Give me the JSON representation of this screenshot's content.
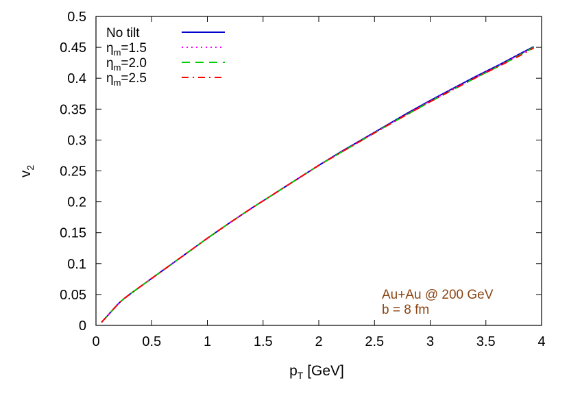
{
  "chart_data": {
    "type": "line",
    "xlabel": {
      "main": "p",
      "sub": "T",
      "rest": " [GeV]"
    },
    "ylabel": {
      "main": "v",
      "sub": "2"
    },
    "xlim": [
      0,
      4
    ],
    "ylim": [
      0,
      0.5
    ],
    "x_ticks": [
      "0",
      "0.5",
      "1",
      "1.5",
      "2",
      "2.5",
      "3",
      "3.5",
      "4"
    ],
    "y_ticks": [
      "0",
      "0.05",
      "0.1",
      "0.15",
      "0.2",
      "0.25",
      "0.3",
      "0.35",
      "0.4",
      "0.45",
      "0.5"
    ],
    "grid": false,
    "legend_position": "top-left",
    "annotation": {
      "lines": [
        "Au+Au @ 200 GeV",
        "b = 8 fm"
      ],
      "color": "#8b4513"
    },
    "series": [
      {
        "name": "No tilt",
        "legend_label": {
          "main": "No tilt",
          "sub": "",
          "rest": ""
        },
        "color": "#0000cc",
        "dash": "solid",
        "x": [
          0.05,
          0.1,
          0.15,
          0.2,
          0.25,
          0.3,
          0.4,
          0.5,
          0.6,
          0.7,
          0.8,
          0.9,
          1.0,
          1.2,
          1.4,
          1.6,
          1.8,
          2.0,
          2.2,
          2.4,
          2.6,
          2.8,
          3.0,
          3.2,
          3.4,
          3.6,
          3.8,
          3.93
        ],
        "y": [
          0.005,
          0.015,
          0.025,
          0.035,
          0.043,
          0.05,
          0.063,
          0.076,
          0.089,
          0.102,
          0.115,
          0.128,
          0.141,
          0.166,
          0.19,
          0.213,
          0.236,
          0.259,
          0.281,
          0.302,
          0.323,
          0.344,
          0.364,
          0.383,
          0.402,
          0.42,
          0.439,
          0.451
        ]
      },
      {
        "name": "ηm=1.5",
        "legend_label": {
          "main": "η",
          "sub": "m",
          "rest": "=1.5"
        },
        "color": "#ff00ff",
        "dash": "dotted",
        "x": [
          0.05,
          0.1,
          0.15,
          0.2,
          0.25,
          0.3,
          0.4,
          0.5,
          0.6,
          0.7,
          0.8,
          0.9,
          1.0,
          1.2,
          1.4,
          1.6,
          1.8,
          2.0,
          2.2,
          2.4,
          2.6,
          2.8,
          3.0,
          3.2,
          3.4,
          3.6,
          3.8,
          3.93
        ],
        "y": [
          0.005,
          0.015,
          0.025,
          0.035,
          0.043,
          0.05,
          0.063,
          0.076,
          0.089,
          0.102,
          0.115,
          0.128,
          0.141,
          0.166,
          0.19,
          0.213,
          0.236,
          0.259,
          0.28,
          0.301,
          0.322,
          0.343,
          0.363,
          0.382,
          0.401,
          0.419,
          0.438,
          0.45
        ]
      },
      {
        "name": "ηm=2.0",
        "legend_label": {
          "main": "η",
          "sub": "m",
          "rest": "=2.0"
        },
        "color": "#00cc00",
        "dash": "dashed",
        "x": [
          0.05,
          0.1,
          0.15,
          0.2,
          0.25,
          0.3,
          0.4,
          0.5,
          0.6,
          0.7,
          0.8,
          0.9,
          1.0,
          1.2,
          1.4,
          1.6,
          1.8,
          2.0,
          2.2,
          2.4,
          2.6,
          2.8,
          3.0,
          3.2,
          3.4,
          3.6,
          3.8,
          3.93
        ],
        "y": [
          0.005,
          0.015,
          0.025,
          0.035,
          0.043,
          0.05,
          0.063,
          0.076,
          0.089,
          0.102,
          0.115,
          0.128,
          0.141,
          0.166,
          0.19,
          0.213,
          0.236,
          0.259,
          0.28,
          0.301,
          0.322,
          0.342,
          0.362,
          0.381,
          0.4,
          0.418,
          0.437,
          0.45
        ]
      },
      {
        "name": "ηm=2.5",
        "legend_label": {
          "main": "η",
          "sub": "m",
          "rest": "=2.5"
        },
        "color": "#ff0000",
        "dash": "dash-dot",
        "x": [
          0.05,
          0.1,
          0.15,
          0.2,
          0.25,
          0.3,
          0.4,
          0.5,
          0.6,
          0.7,
          0.8,
          0.9,
          1.0,
          1.2,
          1.4,
          1.6,
          1.8,
          2.0,
          2.2,
          2.4,
          2.6,
          2.8,
          3.0,
          3.2,
          3.4,
          3.6,
          3.8,
          3.93
        ],
        "y": [
          0.005,
          0.015,
          0.025,
          0.035,
          0.043,
          0.05,
          0.063,
          0.076,
          0.089,
          0.102,
          0.115,
          0.128,
          0.141,
          0.166,
          0.19,
          0.213,
          0.236,
          0.259,
          0.28,
          0.301,
          0.322,
          0.342,
          0.362,
          0.381,
          0.4,
          0.418,
          0.436,
          0.449
        ]
      }
    ]
  }
}
